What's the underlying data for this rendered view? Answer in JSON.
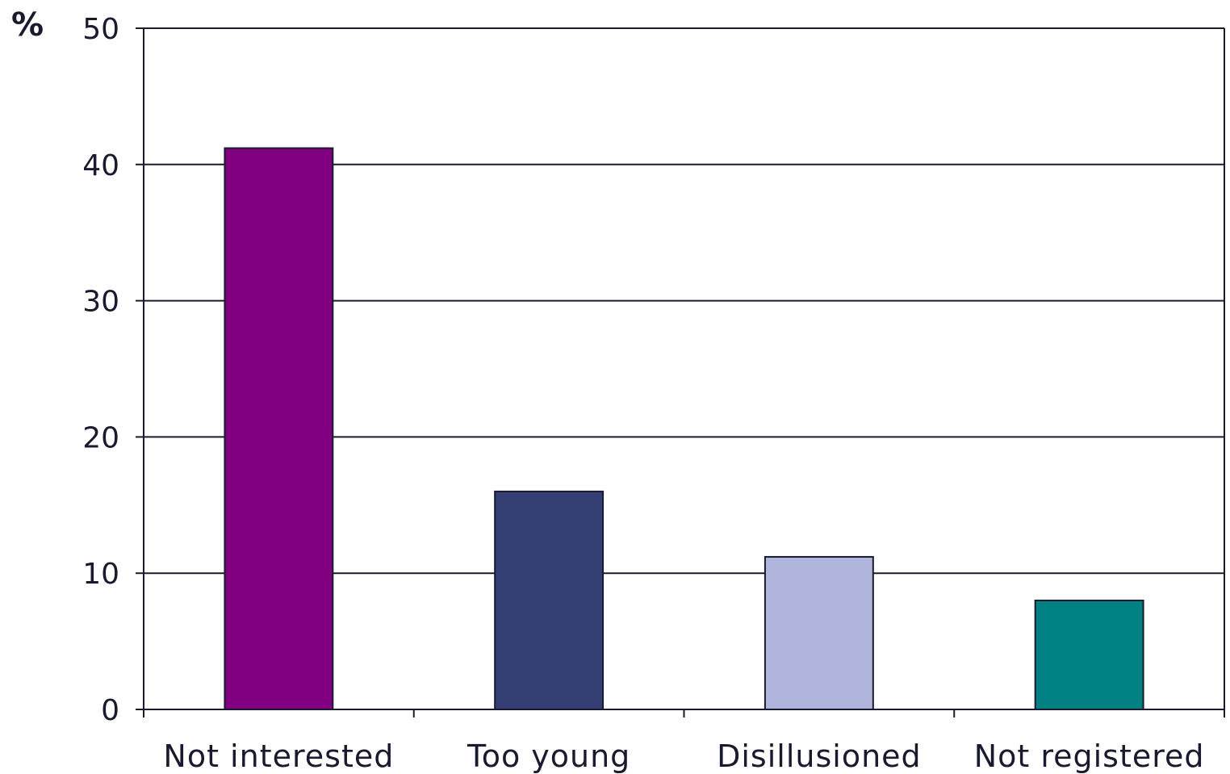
{
  "chart_data": {
    "type": "bar",
    "ylabel": "%",
    "categories": [
      "Not interested",
      "Too young",
      "Disillusioned",
      "Not registered"
    ],
    "values": [
      41.2,
      16.0,
      11.2,
      8.0
    ],
    "colors": [
      "#800080",
      "#333f72",
      "#b0b6db",
      "#008080"
    ],
    "ylim": [
      0,
      50
    ],
    "yticks": [
      0,
      10,
      20,
      30,
      40,
      50
    ],
    "grid": true,
    "legend": "none"
  }
}
